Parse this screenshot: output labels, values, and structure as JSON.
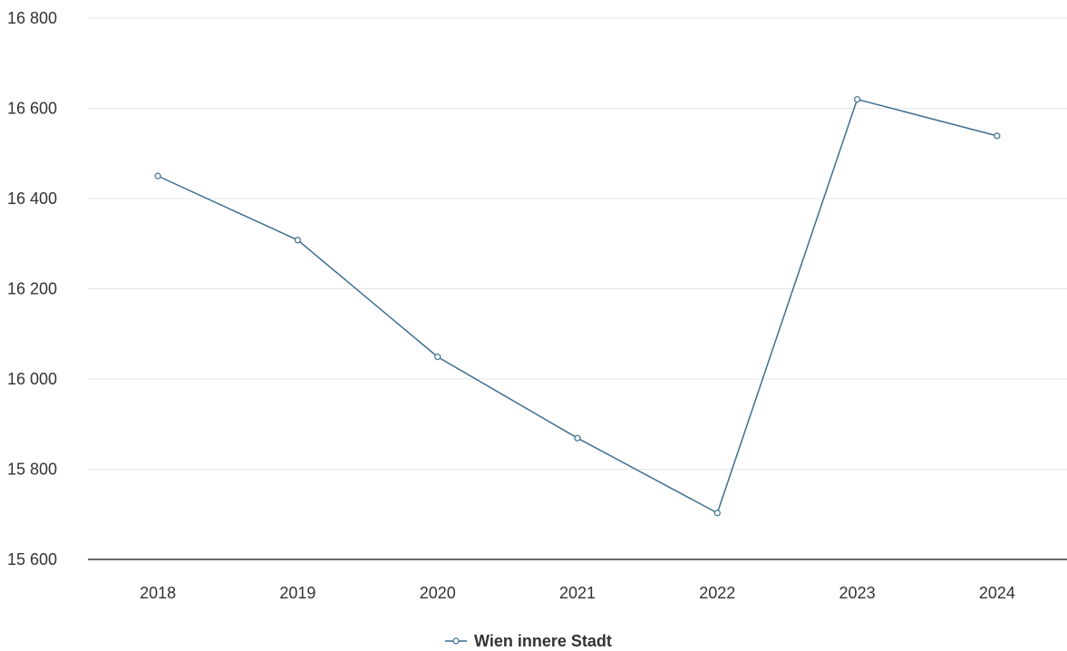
{
  "chart_data": {
    "type": "line",
    "title": "",
    "xlabel": "",
    "ylabel": "",
    "categories": [
      "2018",
      "2019",
      "2020",
      "2021",
      "2022",
      "2023",
      "2024"
    ],
    "series": [
      {
        "name": "Wien innere Stadt",
        "values": [
          16450,
          16308,
          16049,
          15869,
          15703,
          16620,
          16539
        ],
        "color": "#3d6f8e"
      }
    ],
    "ylim": [
      15600,
      16800
    ],
    "yticks": [
      15600,
      15800,
      16000,
      16200,
      16400,
      16600,
      16800
    ],
    "ytick_labels": [
      "15 600",
      "15 800",
      "16 000",
      "16 200",
      "16 400",
      "16 600",
      "16 800"
    ],
    "grid": true,
    "legend": {
      "position": "bottom-center"
    },
    "colors": {
      "gridline": "#e6e6e6",
      "axis": "#333333",
      "marker_fill": "#ffffff"
    }
  }
}
